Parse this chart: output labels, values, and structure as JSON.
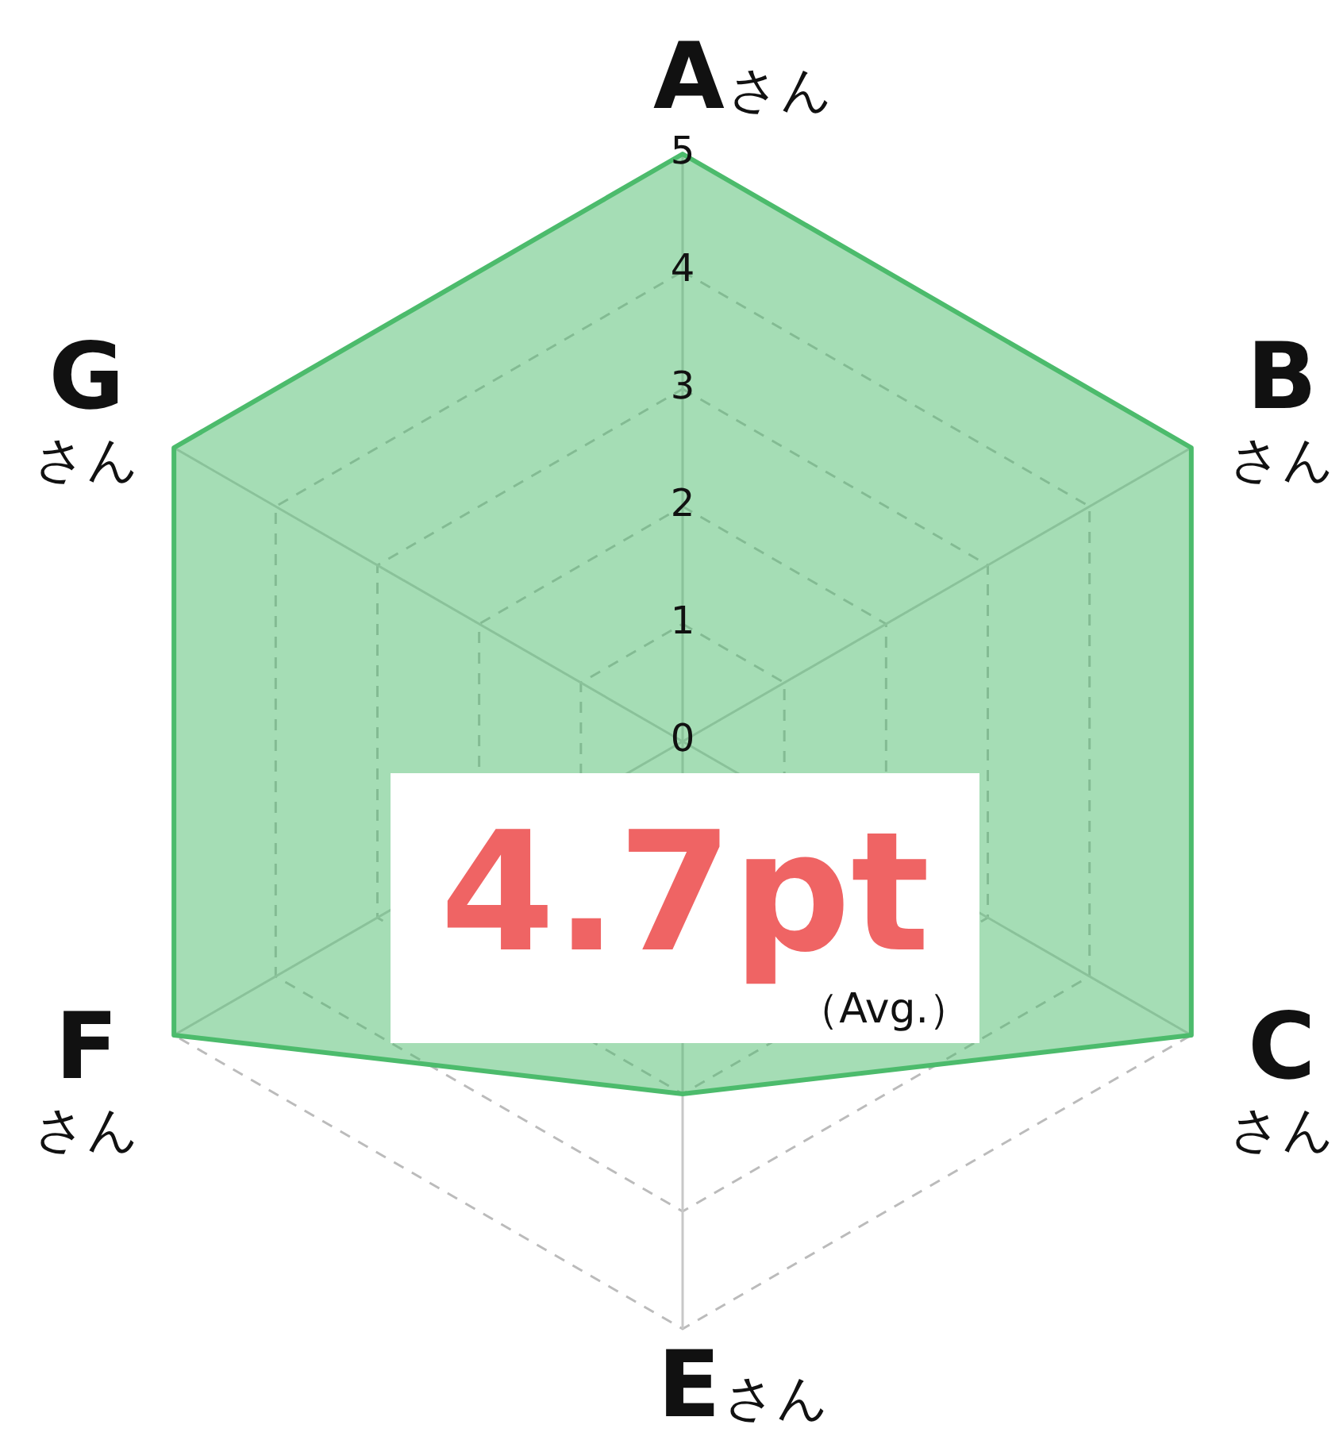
{
  "chart_data": {
    "type": "radar",
    "categories": [
      "Aさん",
      "Bさん",
      "Cさん",
      "Eさん",
      "Fさん",
      "Gさん"
    ],
    "series": [
      {
        "color": "#4cbb6c",
        "values": [
          5,
          5,
          5,
          3,
          5,
          5
        ]
      }
    ],
    "ylim": [
      0,
      5
    ],
    "yticks": [
      0,
      1,
      2,
      3,
      4,
      5
    ],
    "grid": true,
    "legend": false,
    "marker": "none",
    "line_style": "solid",
    "annotations": [
      "4.7pt",
      "（Avg.）"
    ]
  }
}
